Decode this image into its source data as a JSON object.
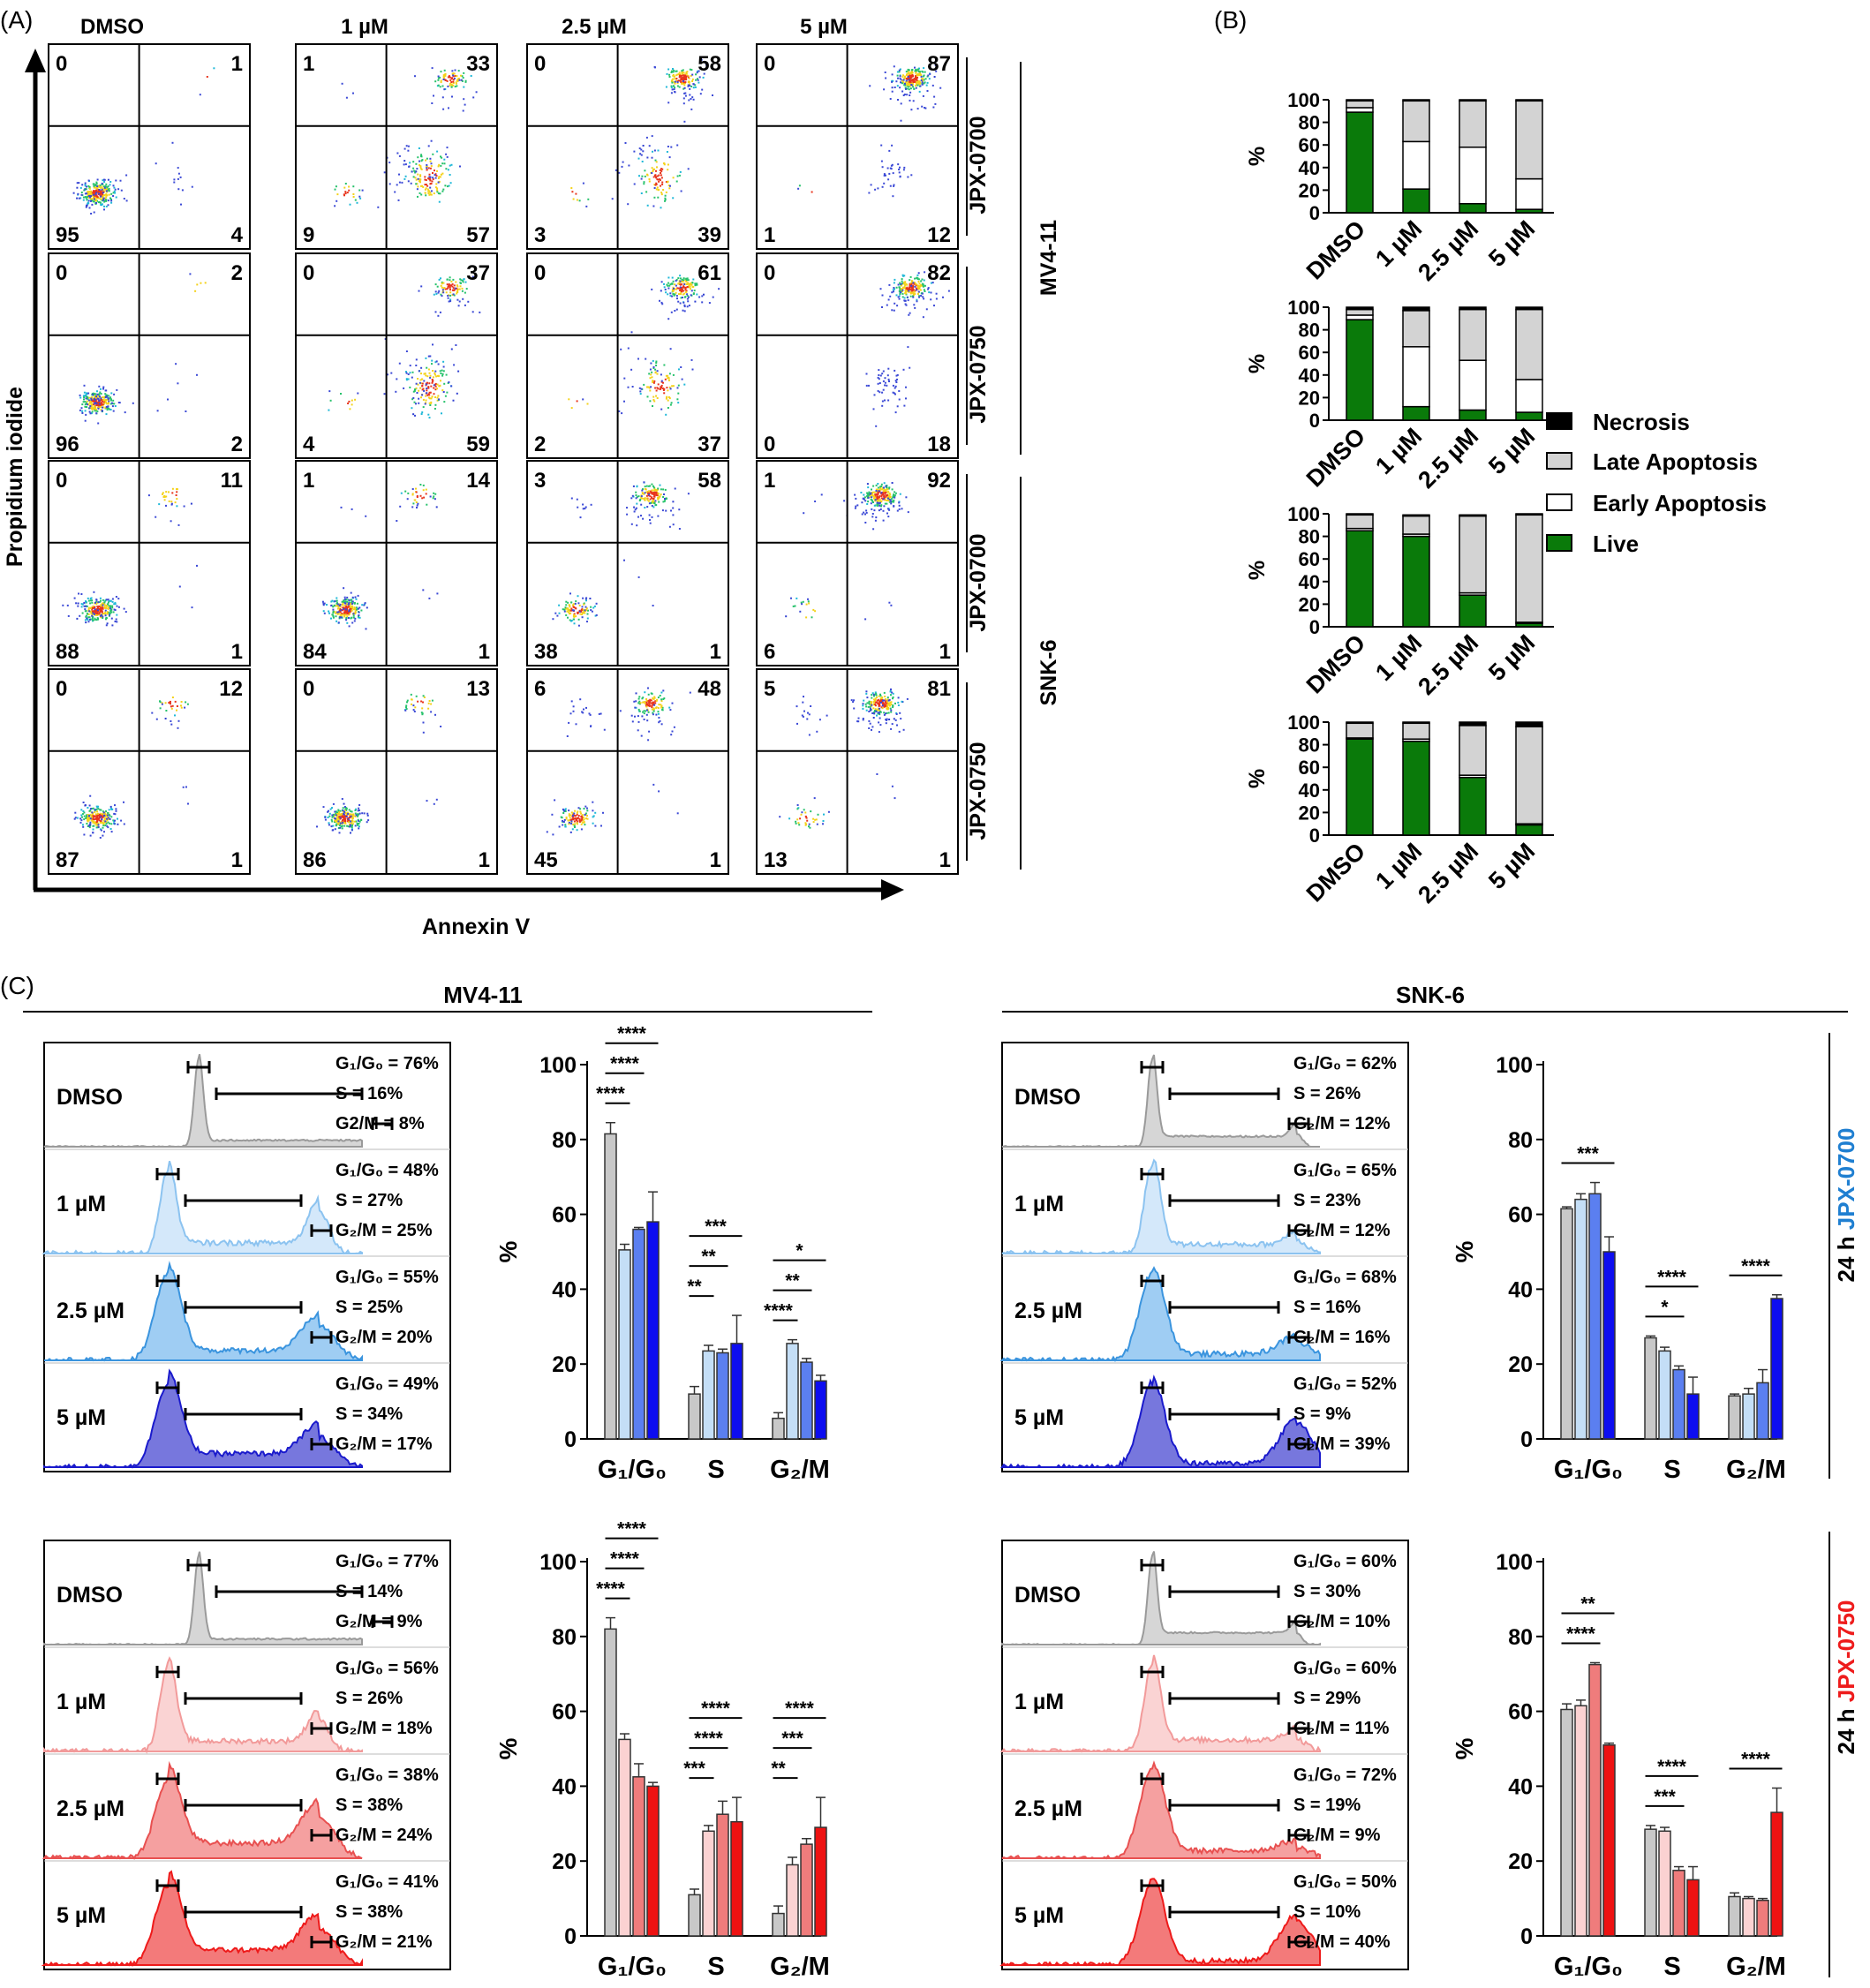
{
  "panel_labels": {
    "A": "(A)",
    "B": "(B)",
    "C": "(C)"
  },
  "panel_a": {
    "columns": [
      "DMSO",
      "1 µM",
      "2.5 µM",
      "5 µM"
    ],
    "y_axis_label": "Propidium iodide",
    "x_axis_label": "Annexin V",
    "row_labels": [
      {
        "drug": "JPX-0700",
        "color": "#1f7fd1"
      },
      {
        "drug": "JPX-0750",
        "color": "#ee1c1c"
      },
      {
        "drug": "JPX-0700",
        "color": "#1f7fd1"
      },
      {
        "drug": "JPX-0750",
        "color": "#ee1c1c"
      }
    ],
    "cell_lines": [
      "MV4-11",
      "SNK-6"
    ],
    "quadrants": [
      [
        [
          "0",
          "1",
          "95",
          "4"
        ],
        [
          "1",
          "33",
          "9",
          "57"
        ],
        [
          "0",
          "58",
          "3",
          "39"
        ],
        [
          "0",
          "87",
          "1",
          "12"
        ]
      ],
      [
        [
          "0",
          "2",
          "96",
          "2"
        ],
        [
          "0",
          "37",
          "4",
          "59"
        ],
        [
          "0",
          "61",
          "2",
          "37"
        ],
        [
          "0",
          "82",
          "0",
          "18"
        ]
      ],
      [
        [
          "0",
          "11",
          "88",
          "1"
        ],
        [
          "1",
          "14",
          "84",
          "1"
        ],
        [
          "3",
          "58",
          "38",
          "1"
        ],
        [
          "1",
          "92",
          "6",
          "1"
        ]
      ],
      [
        [
          "0",
          "12",
          "87",
          "1"
        ],
        [
          "0",
          "13",
          "86",
          "1"
        ],
        [
          "6",
          "48",
          "45",
          "1"
        ],
        [
          "5",
          "81",
          "13",
          "1"
        ]
      ]
    ]
  },
  "panel_b": {
    "ylabel": "%",
    "yticks": [
      "0",
      "20",
      "40",
      "60",
      "80",
      "100"
    ],
    "categories": [
      "DMSO",
      "1 µM",
      "2.5 µM",
      "5 µM"
    ],
    "legend": [
      "Necrosis",
      "Late Apoptosis",
      "Early Apoptosis",
      "Live"
    ],
    "colors": {
      "necrosis": "#000000",
      "late": "#d3d3d3",
      "early": "#ffffff",
      "live": "#0a7a0a"
    }
  },
  "chart_data": [
    {
      "type": "bar",
      "stacked": true,
      "panel": "B",
      "categories": [
        "DMSO",
        "1 µM",
        "2.5 µM",
        "5 µM"
      ],
      "ylabel": "%",
      "ylim": [
        0,
        100
      ],
      "series": [
        {
          "name": "Live",
          "values": [
            89,
            21,
            8,
            3
          ]
        },
        {
          "name": "Early Apoptosis",
          "values": [
            4,
            42,
            50,
            27
          ]
        },
        {
          "name": "Late Apoptosis",
          "values": [
            6,
            36,
            41,
            69
          ]
        },
        {
          "name": "Necrosis",
          "values": [
            1,
            1,
            1,
            1
          ]
        }
      ]
    },
    {
      "type": "bar",
      "stacked": true,
      "panel": "B",
      "categories": [
        "DMSO",
        "1 µM",
        "2.5 µM",
        "5 µM"
      ],
      "ylabel": "%",
      "ylim": [
        0,
        100
      ],
      "series": [
        {
          "name": "Live",
          "values": [
            89,
            12,
            9,
            7
          ]
        },
        {
          "name": "Early Apoptosis",
          "values": [
            4,
            53,
            44,
            29
          ]
        },
        {
          "name": "Late Apoptosis",
          "values": [
            5,
            32,
            45,
            62
          ]
        },
        {
          "name": "Necrosis",
          "values": [
            2,
            3,
            2,
            2
          ]
        }
      ]
    },
    {
      "type": "bar",
      "stacked": true,
      "panel": "B",
      "categories": [
        "DMSO",
        "1 µM",
        "2.5 µM",
        "5 µM"
      ],
      "ylabel": "%",
      "ylim": [
        0,
        100
      ],
      "series": [
        {
          "name": "Live",
          "values": [
            85,
            80,
            28,
            3
          ]
        },
        {
          "name": "Early Apoptosis",
          "values": [
            2,
            2,
            2,
            1
          ]
        },
        {
          "name": "Late Apoptosis",
          "values": [
            12,
            16,
            68,
            95
          ]
        },
        {
          "name": "Necrosis",
          "values": [
            1,
            1,
            1,
            1
          ]
        }
      ]
    },
    {
      "type": "bar",
      "stacked": true,
      "panel": "B",
      "categories": [
        "DMSO",
        "1 µM",
        "2.5 µM",
        "5 µM"
      ],
      "ylabel": "%",
      "ylim": [
        0,
        100
      ],
      "series": [
        {
          "name": "Live",
          "values": [
            85,
            83,
            51,
            9
          ]
        },
        {
          "name": "Early Apoptosis",
          "values": [
            1,
            2,
            2,
            1
          ]
        },
        {
          "name": "Late Apoptosis",
          "values": [
            13,
            14,
            44,
            86
          ]
        },
        {
          "name": "Necrosis",
          "values": [
            1,
            1,
            3,
            4
          ]
        }
      ]
    },
    {
      "type": "bar",
      "panel": "C",
      "cell_line": "MV4-11",
      "drug": "JPX-0700",
      "categories": [
        "G1/G0",
        "S",
        "G2/M"
      ],
      "ylabel": "%",
      "ylim": [
        0,
        100
      ],
      "series": [
        {
          "name": "DMSO",
          "values": [
            81.5,
            12,
            5.5
          ],
          "err": [
            3,
            2,
            1.5
          ]
        },
        {
          "name": "1 µM",
          "values": [
            50.5,
            23.5,
            25.5
          ],
          "err": [
            1.5,
            1.5,
            1
          ]
        },
        {
          "name": "2.5 µM",
          "values": [
            56,
            23,
            20.5
          ],
          "err": [
            0.5,
            1,
            1
          ]
        },
        {
          "name": "5 µM",
          "values": [
            58,
            25.5,
            15.5
          ],
          "err": [
            8,
            7.5,
            1.5
          ]
        }
      ]
    },
    {
      "type": "bar",
      "panel": "C",
      "cell_line": "SNK-6",
      "drug": "JPX-0700",
      "categories": [
        "G1/G0",
        "S",
        "G2/M"
      ],
      "ylabel": "%",
      "ylim": [
        0,
        100
      ],
      "series": [
        {
          "name": "DMSO",
          "values": [
            61.5,
            27,
            11.5
          ],
          "err": [
            0.5,
            0.5,
            0.5
          ]
        },
        {
          "name": "1 µM",
          "values": [
            64,
            23.5,
            12
          ],
          "err": [
            1.5,
            1,
            1.5
          ]
        },
        {
          "name": "2.5 µM",
          "values": [
            65.5,
            18.5,
            15
          ],
          "err": [
            3,
            1,
            3.5
          ]
        },
        {
          "name": "5 µM",
          "values": [
            50,
            12,
            37.5
          ],
          "err": [
            4,
            4.5,
            1
          ]
        }
      ]
    },
    {
      "type": "bar",
      "panel": "C",
      "cell_line": "MV4-11",
      "drug": "JPX-0750",
      "categories": [
        "G1/G0",
        "S",
        "G2/M"
      ],
      "ylabel": "%",
      "ylim": [
        0,
        100
      ],
      "series": [
        {
          "name": "DMSO",
          "values": [
            82,
            11,
            6
          ],
          "err": [
            3,
            1.5,
            2
          ]
        },
        {
          "name": "1 µM",
          "values": [
            52.5,
            28,
            19
          ],
          "err": [
            1.5,
            1.5,
            2
          ]
        },
        {
          "name": "2.5 µM",
          "values": [
            42.5,
            32.5,
            24.5
          ],
          "err": [
            3.5,
            3.5,
            1.5
          ]
        },
        {
          "name": "5 µM",
          "values": [
            40,
            30.5,
            29
          ],
          "err": [
            1,
            6.5,
            8
          ]
        }
      ]
    },
    {
      "type": "bar",
      "panel": "C",
      "cell_line": "SNK-6",
      "drug": "JPX-0750",
      "categories": [
        "G1/G0",
        "S",
        "G2/M"
      ],
      "ylabel": "%",
      "ylim": [
        0,
        100
      ],
      "series": [
        {
          "name": "DMSO",
          "values": [
            60.5,
            28.5,
            10.5
          ],
          "err": [
            1.5,
            1,
            1
          ]
        },
        {
          "name": "1 µM",
          "values": [
            61.5,
            28,
            10
          ],
          "err": [
            1.5,
            1,
            0.5
          ]
        },
        {
          "name": "2.5 µM",
          "values": [
            72.5,
            17.5,
            9.5
          ],
          "err": [
            0.5,
            1,
            0.5
          ]
        },
        {
          "name": "5 µM",
          "values": [
            51,
            15,
            33
          ],
          "err": [
            0.5,
            3.5,
            6.5
          ]
        }
      ]
    }
  ],
  "panel_c": {
    "cell_lines": [
      "MV4-11",
      "SNK-6"
    ],
    "side_labels": [
      {
        "prefix": "24 h ",
        "drug": "JPX-0700",
        "color": "#1f7fd1"
      },
      {
        "prefix": "24 h ",
        "drug": "JPX-0750",
        "color": "#ee1c1c"
      }
    ],
    "ylabel": "%",
    "yticks": [
      "0",
      "20",
      "40",
      "60",
      "80",
      "100"
    ],
    "conditions": [
      "DMSO",
      "1 µM",
      "2.5 µM",
      "5 µM"
    ],
    "series_colors": {
      "JPX-0700": [
        "#c8c8c8",
        "#c4def6",
        "#5b7ff0",
        "#0d0df0"
      ],
      "JPX-0750": [
        "#c8c8c8",
        "#fbd2d2",
        "#ef7c7c",
        "#ee1212"
      ]
    },
    "hist_fill": {
      "JPX-0700": [
        {
          "fill": "#d6d6d6",
          "stroke": "#9a9a9a"
        },
        {
          "fill": "#d4e8fa",
          "stroke": "#8cc3f0"
        },
        {
          "fill": "#9fcdf3",
          "stroke": "#3a94de"
        },
        {
          "fill": "#7777dd",
          "stroke": "#1a1acc"
        }
      ],
      "JPX-0750": [
        {
          "fill": "#d6d6d6",
          "stroke": "#9a9a9a"
        },
        {
          "fill": "#fad3d3",
          "stroke": "#f29a9a"
        },
        {
          "fill": "#f5a0a0",
          "stroke": "#e85050"
        },
        {
          "fill": "#f37a7a",
          "stroke": "#ee1a1a"
        }
      ]
    },
    "hist_stats": [
      [
        [
          "G₁/G₀ = 76%",
          "S = 16%",
          "G2/M = 8%"
        ],
        [
          "G₁/G₀ = 48%",
          "S = 27%",
          "G₂/M = 25%"
        ],
        [
          "G₁/G₀ = 55%",
          "S = 25%",
          "G₂/M = 20%"
        ],
        [
          "G₁/G₀ = 49%",
          "S = 34%",
          "G₂/M = 17%"
        ]
      ],
      [
        [
          "G₁/G₀ = 62%",
          "S = 26%",
          "G₂/M = 12%"
        ],
        [
          "G₁/G₀ = 65%",
          "S = 23%",
          "G₂/M = 12%"
        ],
        [
          "G₁/G₀ = 68%",
          "S = 16%",
          "G₂/M = 16%"
        ],
        [
          "G₁/G₀ = 52%",
          "S = 9%",
          "G₂/M = 39%"
        ]
      ],
      [
        [
          "G₁/G₀ = 77%",
          "S = 14%",
          "G₂/M = 9%"
        ],
        [
          "G₁/G₀ = 56%",
          "S = 26%",
          "G₂/M = 18%"
        ],
        [
          "G₁/G₀ = 38%",
          "S = 38%",
          "G₂/M = 24%"
        ],
        [
          "G₁/G₀ = 41%",
          "S = 38%",
          "G₂/M = 21%"
        ]
      ],
      [
        [
          "G₁/G₀ = 60%",
          "S = 30%",
          "G₂/M = 10%"
        ],
        [
          "G₁/G₀ = 60%",
          "S = 29%",
          "G₂/M = 11%"
        ],
        [
          "G₁/G₀ = 72%",
          "S = 19%",
          "G₂/M = 9%"
        ],
        [
          "G₁/G₀ = 50%",
          "S = 10%",
          "G₂/M = 40%"
        ]
      ]
    ],
    "x_categories": [
      "G₁/G₀",
      "S",
      "G₂/M"
    ],
    "significance": [
      [
        {
          "g": 0,
          "from": 0,
          "to": 1,
          "label": "****"
        },
        {
          "g": 0,
          "from": 0,
          "to": 2,
          "label": "****"
        },
        {
          "g": 0,
          "from": 0,
          "to": 3,
          "label": "****"
        },
        {
          "g": 1,
          "from": 0,
          "to": 1,
          "label": "**"
        },
        {
          "g": 1,
          "from": 0,
          "to": 2,
          "label": "**"
        },
        {
          "g": 1,
          "from": 0,
          "to": 3,
          "label": "***"
        },
        {
          "g": 2,
          "from": 0,
          "to": 1,
          "label": "****"
        },
        {
          "g": 2,
          "from": 0,
          "to": 2,
          "label": "**"
        },
        {
          "g": 2,
          "from": 0,
          "to": 3,
          "label": "*"
        }
      ],
      [
        {
          "g": 0,
          "from": 0,
          "to": 3,
          "label": "***"
        },
        {
          "g": 1,
          "from": 0,
          "to": 2,
          "label": "*"
        },
        {
          "g": 1,
          "from": 0,
          "to": 3,
          "label": "****"
        },
        {
          "g": 2,
          "from": 0,
          "to": 3,
          "label": "****"
        }
      ],
      [
        {
          "g": 0,
          "from": 0,
          "to": 1,
          "label": "****"
        },
        {
          "g": 0,
          "from": 0,
          "to": 2,
          "label": "****"
        },
        {
          "g": 0,
          "from": 0,
          "to": 3,
          "label": "****"
        },
        {
          "g": 1,
          "from": 0,
          "to": 1,
          "label": "***"
        },
        {
          "g": 1,
          "from": 0,
          "to": 2,
          "label": "****"
        },
        {
          "g": 1,
          "from": 0,
          "to": 3,
          "label": "****"
        },
        {
          "g": 2,
          "from": 0,
          "to": 1,
          "label": "**"
        },
        {
          "g": 2,
          "from": 0,
          "to": 2,
          "label": "***"
        },
        {
          "g": 2,
          "from": 0,
          "to": 3,
          "label": "****"
        }
      ],
      [
        {
          "g": 0,
          "from": 0,
          "to": 2,
          "label": "****"
        },
        {
          "g": 0,
          "from": 0,
          "to": 3,
          "label": "**"
        },
        {
          "g": 1,
          "from": 0,
          "to": 2,
          "label": "***"
        },
        {
          "g": 1,
          "from": 0,
          "to": 3,
          "label": "****"
        },
        {
          "g": 2,
          "from": 0,
          "to": 3,
          "label": "****"
        }
      ]
    ]
  }
}
